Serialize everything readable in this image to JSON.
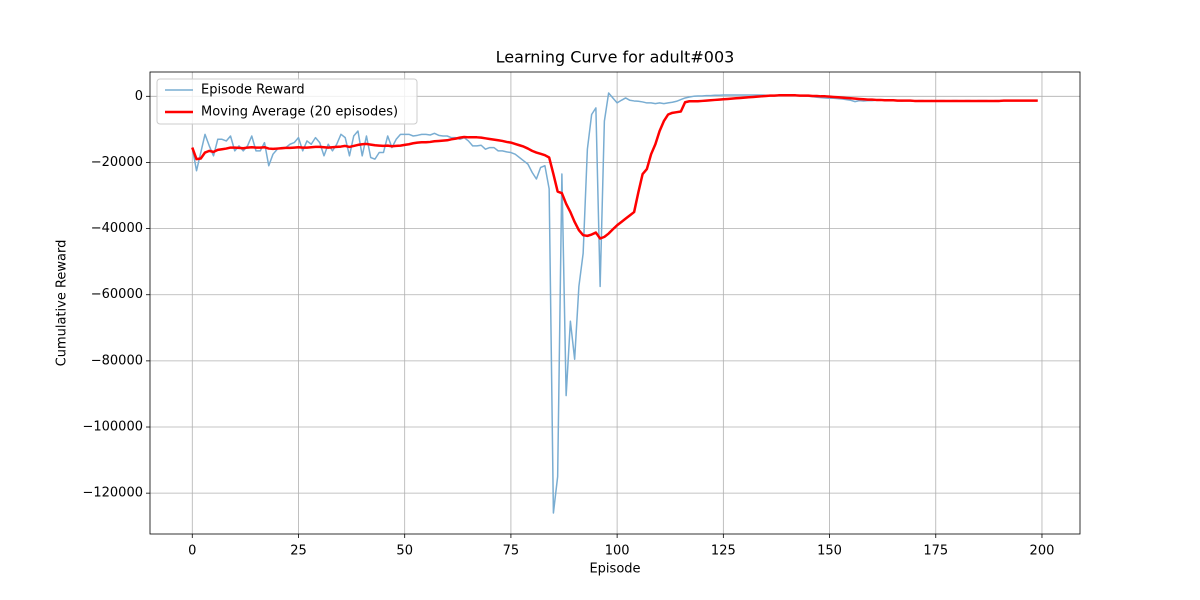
{
  "chart_data": {
    "type": "line",
    "title": "Learning Curve for adult#003",
    "x_label": "Episode",
    "y_label": "Cumulative Reward",
    "x": [
      0,
      1,
      2,
      3,
      4,
      5,
      6,
      7,
      8,
      9,
      10,
      11,
      12,
      13,
      14,
      15,
      16,
      17,
      18,
      19,
      20,
      21,
      22,
      23,
      24,
      25,
      26,
      27,
      28,
      29,
      30,
      31,
      32,
      33,
      34,
      35,
      36,
      37,
      38,
      39,
      40,
      41,
      42,
      43,
      44,
      45,
      46,
      47,
      48,
      49,
      50,
      51,
      52,
      53,
      54,
      55,
      56,
      57,
      58,
      59,
      60,
      61,
      62,
      63,
      64,
      65,
      66,
      67,
      68,
      69,
      70,
      71,
      72,
      73,
      74,
      75,
      76,
      77,
      78,
      79,
      80,
      81,
      82,
      83,
      84,
      85,
      86,
      87,
      88,
      89,
      90,
      91,
      92,
      93,
      94,
      95,
      96,
      97,
      98,
      99,
      100,
      101,
      102,
      103,
      104,
      105,
      106,
      107,
      108,
      109,
      110,
      111,
      112,
      113,
      114,
      115,
      116,
      117,
      118,
      119,
      120,
      121,
      122,
      123,
      124,
      125,
      126,
      127,
      128,
      129,
      130,
      131,
      132,
      133,
      134,
      135,
      136,
      137,
      138,
      139,
      140,
      141,
      142,
      143,
      144,
      145,
      146,
      147,
      148,
      149,
      150,
      151,
      152,
      153,
      154,
      155,
      156,
      157,
      158,
      159,
      160,
      161,
      162,
      163,
      164,
      165,
      166,
      167,
      168,
      169,
      170,
      171,
      172,
      173,
      174,
      175,
      176,
      177,
      178,
      179,
      180,
      181,
      182,
      183,
      184,
      185,
      186,
      187,
      188,
      189,
      190,
      191,
      192,
      193,
      194,
      195,
      196,
      197,
      198,
      199
    ],
    "series": [
      {
        "name": "Episode Reward",
        "color": "#79add2",
        "width": 1.5,
        "values": [
          -15500,
          -22500,
          -17000,
          -11500,
          -15000,
          -18000,
          -13000,
          -13000,
          -13500,
          -12000,
          -16500,
          -15000,
          -16500,
          -15000,
          -12000,
          -16500,
          -16500,
          -14000,
          -21000,
          -17500,
          -16000,
          -15500,
          -15500,
          -14500,
          -14000,
          -12500,
          -16500,
          -13500,
          -14500,
          -12500,
          -14000,
          -18000,
          -14500,
          -16500,
          -14500,
          -11500,
          -12500,
          -18000,
          -12000,
          -10500,
          -18000,
          -12000,
          -18500,
          -19000,
          -17000,
          -17000,
          -12000,
          -15500,
          -13000,
          -11500,
          -11500,
          -11500,
          -12000,
          -11800,
          -11500,
          -11500,
          -11700,
          -11200,
          -11800,
          -12000,
          -12000,
          -12500,
          -12500,
          -13000,
          -12500,
          -13500,
          -15000,
          -15000,
          -14800,
          -16000,
          -15500,
          -15500,
          -16500,
          -16500,
          -16800,
          -17000,
          -17500,
          -18500,
          -19500,
          -20500,
          -23000,
          -25000,
          -21500,
          -21000,
          -28000,
          -126000,
          -115000,
          -23500,
          -90500,
          -68000,
          -79500,
          -57500,
          -47500,
          -16000,
          -5500,
          -3500,
          -57500,
          -7500,
          1000,
          -500,
          -2000,
          -1200,
          -500,
          -1200,
          -1400,
          -1500,
          -1700,
          -2000,
          -2000,
          -2200,
          -2000,
          -2200,
          -2000,
          -1800,
          -1500,
          -1000,
          -500,
          -200,
          0,
          100,
          100,
          200,
          200,
          300,
          300,
          400,
          400,
          400,
          400,
          400,
          400,
          400,
          400,
          400,
          400,
          300,
          300,
          300,
          300,
          300,
          300,
          200,
          200,
          200,
          100,
          0,
          -100,
          -300,
          -400,
          -500,
          -600,
          -600,
          -700,
          -800,
          -1000,
          -1200,
          -1600,
          -1300,
          -1400,
          -1300,
          -1300,
          -1200,
          -1200,
          -1200,
          -1200,
          -1300,
          -1300,
          -1400,
          -1300,
          -1300,
          -1400,
          -1300,
          -1300,
          -1400,
          -1300,
          -1400,
          -1300,
          -1300,
          -1400,
          -1300,
          -1300,
          -1400,
          -1300,
          -1300,
          -1400,
          -1300,
          -1300,
          -1300,
          -1400,
          -1300,
          -1300,
          -1200,
          -1300,
          -1300,
          -1200,
          -1300,
          -1300,
          -1200,
          -1300,
          -1200
        ]
      },
      {
        "name": "Moving Average (20 episodes)",
        "color": "#ff0000",
        "width": 2.5,
        "values": [
          -15500,
          -19000,
          -18800,
          -17000,
          -16500,
          -16800,
          -16200,
          -16000,
          -15800,
          -15500,
          -15500,
          -15600,
          -15700,
          -15500,
          -15400,
          -15500,
          -15500,
          -15400,
          -15800,
          -15900,
          -15800,
          -15700,
          -15600,
          -15600,
          -15500,
          -15400,
          -15500,
          -15500,
          -15400,
          -15300,
          -15300,
          -15400,
          -15500,
          -15400,
          -15300,
          -15200,
          -15000,
          -15300,
          -15000,
          -14700,
          -14500,
          -14400,
          -14600,
          -14800,
          -14900,
          -15000,
          -14900,
          -15100,
          -15000,
          -14900,
          -14700,
          -14500,
          -14200,
          -14000,
          -13900,
          -13900,
          -13800,
          -13600,
          -13500,
          -13400,
          -13300,
          -13000,
          -12800,
          -12500,
          -12300,
          -12400,
          -12400,
          -12400,
          -12500,
          -12700,
          -12900,
          -13100,
          -13300,
          -13500,
          -13800,
          -14000,
          -14400,
          -14800,
          -15200,
          -15800,
          -16500,
          -17000,
          -17400,
          -17800,
          -18500,
          -23500,
          -28800,
          -29300,
          -32500,
          -35000,
          -38000,
          -40500,
          -42000,
          -42200,
          -41800,
          -41200,
          -43000,
          -42500,
          -41500,
          -40200,
          -39000,
          -38000,
          -37000,
          -36000,
          -35000,
          -29000,
          -23500,
          -22000,
          -17500,
          -14500,
          -10500,
          -7500,
          -5500,
          -5000,
          -4800,
          -4600,
          -1800,
          -1500,
          -1500,
          -1500,
          -1400,
          -1300,
          -1200,
          -1100,
          -1000,
          -900,
          -800,
          -700,
          -600,
          -500,
          -400,
          -300,
          -200,
          -100,
          0,
          100,
          200,
          200,
          300,
          300,
          300,
          300,
          300,
          200,
          200,
          200,
          100,
          100,
          0,
          0,
          -100,
          -200,
          -300,
          -400,
          -500,
          -600,
          -700,
          -800,
          -900,
          -1000,
          -1000,
          -1100,
          -1100,
          -1200,
          -1200,
          -1200,
          -1300,
          -1300,
          -1300,
          -1300,
          -1400,
          -1400,
          -1400,
          -1400,
          -1400,
          -1400,
          -1400,
          -1400,
          -1400,
          -1400,
          -1400,
          -1400,
          -1400,
          -1400,
          -1400,
          -1400,
          -1400,
          -1400,
          -1400,
          -1400,
          -1400,
          -1300,
          -1300,
          -1300,
          -1300,
          -1300,
          -1300,
          -1300,
          -1300,
          -1300
        ]
      }
    ],
    "xlim": [
      -9.95,
      208.95
    ],
    "ylim": [
      -132350,
      7350
    ],
    "xticks": [
      0,
      25,
      50,
      75,
      100,
      125,
      150,
      175,
      200
    ],
    "yticks": [
      {
        "value": -120000,
        "label": "−120000"
      },
      {
        "value": -100000,
        "label": "−100000"
      },
      {
        "value": -80000,
        "label": "−80000"
      },
      {
        "value": -60000,
        "label": "−60000"
      },
      {
        "value": -40000,
        "label": "−40000"
      },
      {
        "value": -20000,
        "label": "−20000"
      },
      0
    ],
    "grid": true,
    "legend": "upper left"
  }
}
